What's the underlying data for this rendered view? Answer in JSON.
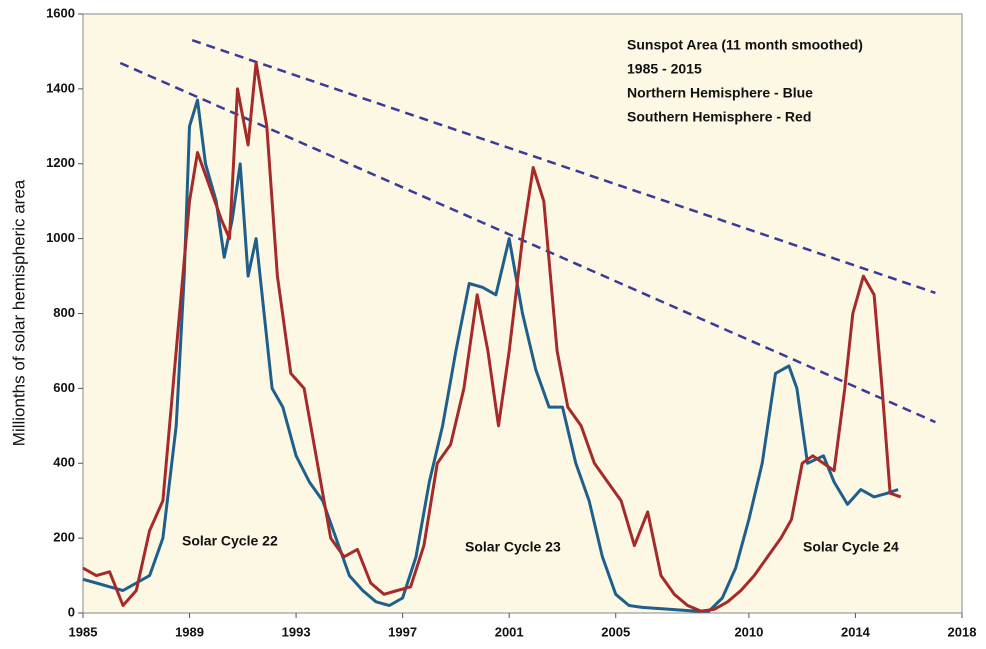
{
  "chart_data": {
    "type": "line",
    "y_label": "Millionths of solar hemispheric area",
    "xlim": [
      1985,
      2018
    ],
    "xticks": [
      1985,
      1989,
      1993,
      1997,
      2001,
      2005,
      2010,
      2014,
      2018
    ],
    "ylim": [
      0,
      1600
    ],
    "yticks": [
      0,
      200,
      400,
      600,
      800,
      1000,
      1200,
      1400,
      1600
    ],
    "annotations": [
      "Sunspot Area (11 month smoothed)",
      "1985 - 2015",
      "Northern Hemisphere  - Blue",
      "Southern Hemisphere - Red"
    ],
    "cycle_labels": [
      "Solar Cycle 22",
      "Solar Cycle 23",
      "Solar Cycle 24"
    ],
    "series": [
      {
        "color": "#1f5f8b",
        "x": [
          1985.0,
          1985.5,
          1986.0,
          1986.5,
          1987.0,
          1987.5,
          1988.0,
          1988.5,
          1988.8,
          1989.0,
          1989.3,
          1989.6,
          1990.0,
          1990.3,
          1990.6,
          1990.9,
          1991.2,
          1991.5,
          1991.8,
          1992.1,
          1992.5,
          1993.0,
          1993.5,
          1994.0,
          1994.5,
          1995.0,
          1995.5,
          1996.0,
          1996.5,
          1997.0,
          1997.5,
          1998.0,
          1998.5,
          1999.0,
          1999.5,
          2000.0,
          2000.5,
          2001.0,
          2001.5,
          2002.0,
          2002.5,
          2003.0,
          2003.5,
          2004.0,
          2004.5,
          2005.0,
          2005.5,
          2006.0,
          2007.0,
          2008.0,
          2008.5,
          2009.0,
          2009.5,
          2010.0,
          2010.5,
          2011.0,
          2011.5,
          2011.8,
          2012.2,
          2012.8,
          2013.2,
          2013.7,
          2014.2,
          2014.7,
          2015.2,
          2015.6
        ],
        "values": [
          90,
          80,
          70,
          60,
          80,
          100,
          200,
          500,
          900,
          1300,
          1370,
          1200,
          1100,
          950,
          1050,
          1200,
          900,
          1000,
          800,
          600,
          550,
          420,
          350,
          300,
          200,
          100,
          60,
          30,
          20,
          40,
          150,
          350,
          500,
          700,
          880,
          870,
          850,
          1000,
          800,
          650,
          550,
          550,
          400,
          300,
          150,
          50,
          20,
          15,
          10,
          5,
          5,
          40,
          120,
          250,
          400,
          640,
          660,
          600,
          400,
          420,
          350,
          290,
          330,
          310,
          320,
          330
        ]
      },
      {
        "color": "#a52a2a",
        "x": [
          1985.0,
          1985.5,
          1986.0,
          1986.5,
          1987.0,
          1987.5,
          1988.0,
          1988.5,
          1989.0,
          1989.3,
          1989.7,
          1990.2,
          1990.5,
          1990.8,
          1991.2,
          1991.5,
          1991.9,
          1992.3,
          1992.8,
          1993.3,
          1993.8,
          1994.3,
          1994.8,
          1995.3,
          1995.8,
          1996.3,
          1996.8,
          1997.3,
          1997.8,
          1998.3,
          1998.8,
          1999.3,
          1999.8,
          2000.2,
          2000.6,
          2001.0,
          2001.5,
          2001.9,
          2002.3,
          2002.8,
          2003.2,
          2003.7,
          2004.2,
          2004.7,
          2005.2,
          2005.7,
          2006.2,
          2006.7,
          2007.2,
          2007.7,
          2008.2,
          2008.7,
          2009.2,
          2009.7,
          2010.2,
          2010.7,
          2011.2,
          2011.6,
          2012.0,
          2012.4,
          2012.8,
          2013.2,
          2013.6,
          2013.9,
          2014.3,
          2014.7,
          2015.0,
          2015.3,
          2015.7
        ],
        "values": [
          120,
          100,
          110,
          20,
          60,
          220,
          300,
          700,
          1100,
          1230,
          1150,
          1050,
          1000,
          1400,
          1250,
          1470,
          1300,
          900,
          640,
          600,
          400,
          200,
          150,
          170,
          80,
          50,
          60,
          70,
          180,
          400,
          450,
          600,
          850,
          700,
          500,
          700,
          1000,
          1190,
          1100,
          700,
          550,
          500,
          400,
          350,
          300,
          180,
          270,
          100,
          50,
          20,
          5,
          10,
          30,
          60,
          100,
          150,
          200,
          250,
          400,
          420,
          400,
          380,
          600,
          800,
          900,
          850,
          600,
          320,
          310
        ]
      }
    ],
    "trend_lines": [
      {
        "color": "#3a3a9a",
        "x": [
          1989.1,
          2017.0
        ],
        "values": [
          1530,
          855
        ]
      },
      {
        "color": "#3a3a9a",
        "x": [
          1986.4,
          2017.0
        ],
        "values": [
          1469,
          510
        ]
      }
    ]
  }
}
